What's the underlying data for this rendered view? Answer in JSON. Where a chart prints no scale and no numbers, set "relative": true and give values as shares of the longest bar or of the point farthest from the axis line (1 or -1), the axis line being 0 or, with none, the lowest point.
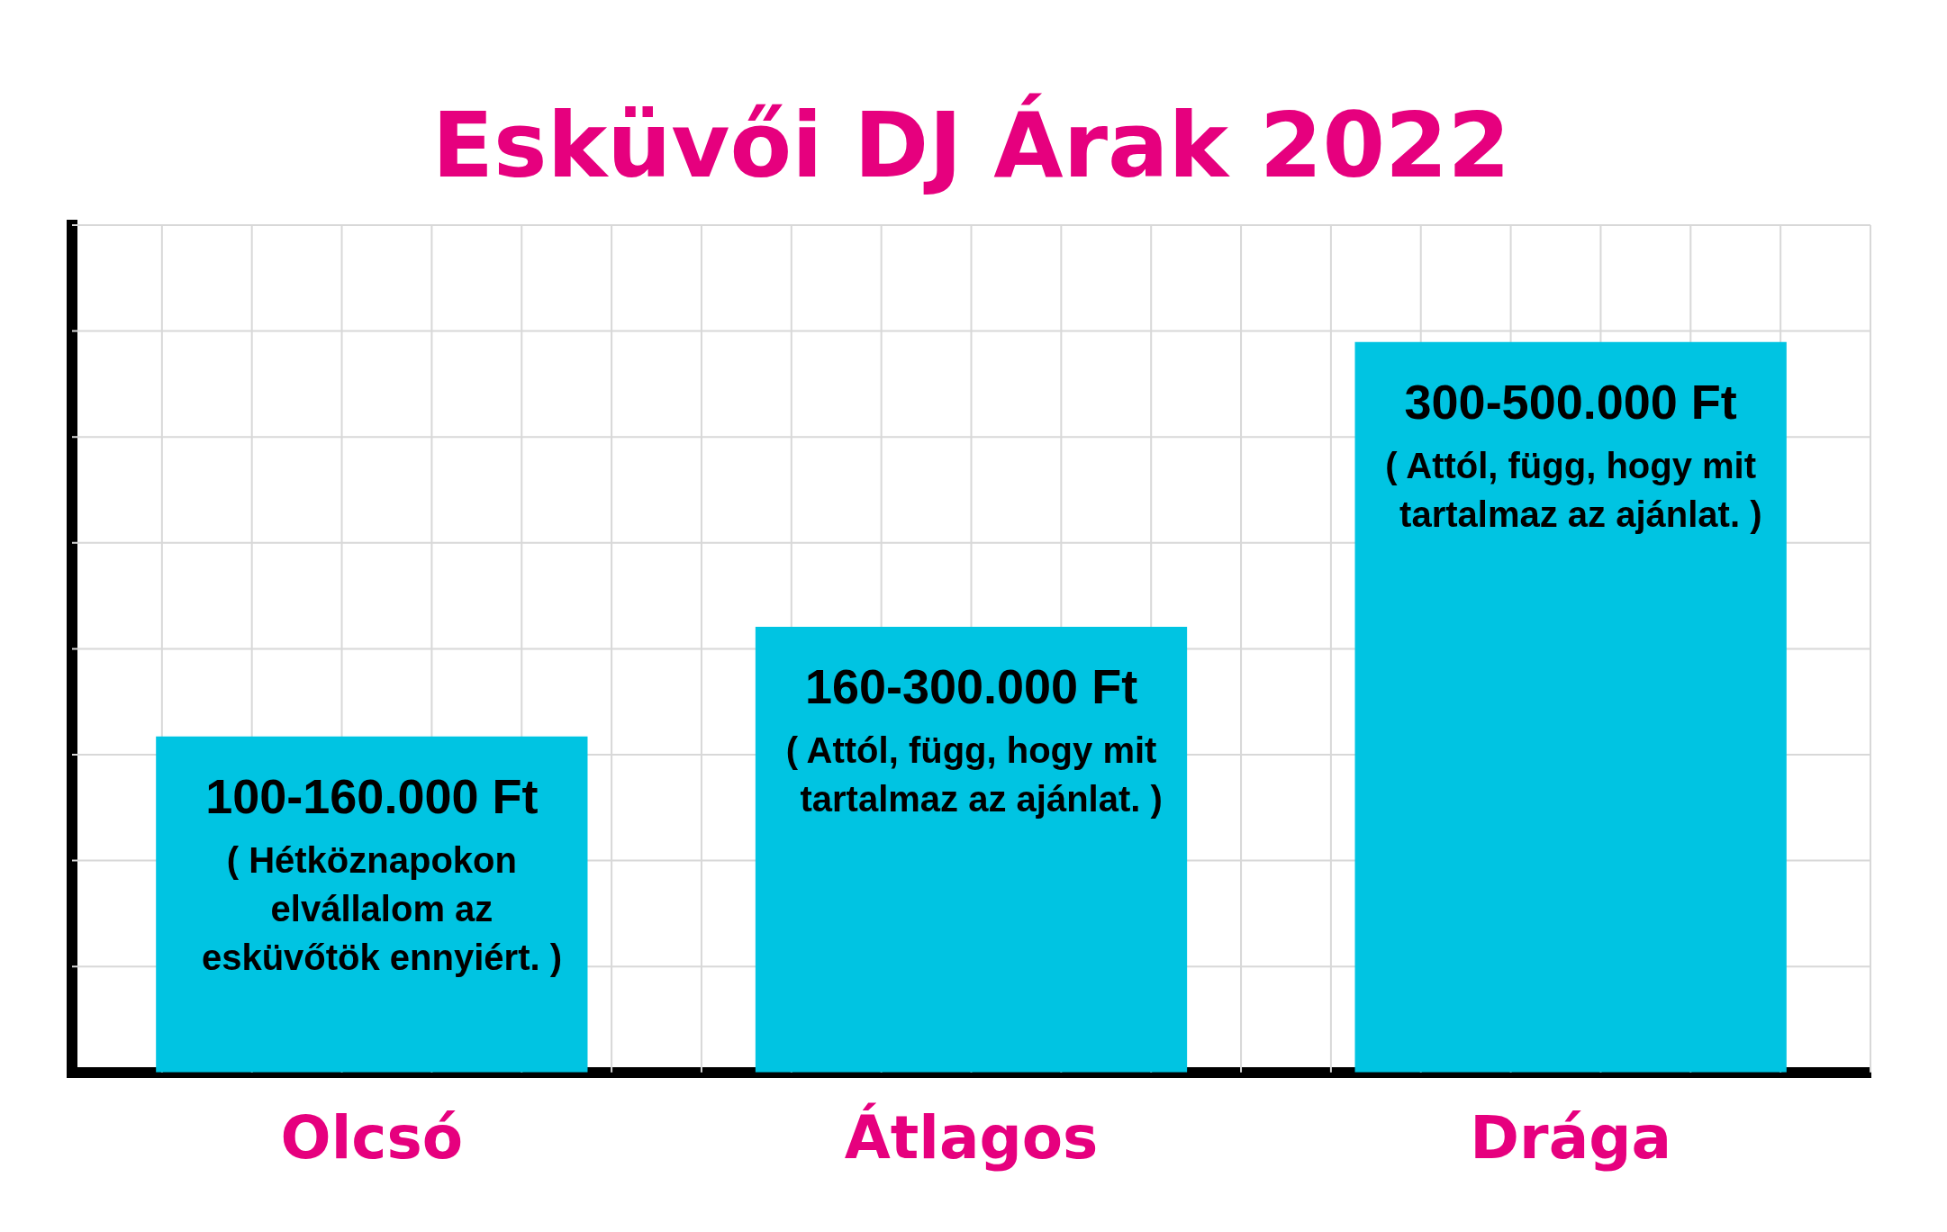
{
  "chart_data": {
    "type": "bar",
    "title": "Esküvői DJ Árak 2022",
    "relative": true,
    "categories": [
      "Olcsó",
      "Átlagos",
      "Drága"
    ],
    "values": [
      0.46,
      0.61,
      1
    ],
    "color": "#00c4e2",
    "grid": true,
    "tick_labels": "x",
    "annotations": [
      "100-160.000 Ft\n( Hétköznapokon\n  elvállalom az\n  esküvőtök ennyiért. )",
      "160-300.000 Ft\n( Attól, függ, hogy mit\n  tartalmaz az ajánlat. )",
      "300-500.000 Ft\n( Attól, függ, hogy mit\n  tartalmaz az ajánlat. )"
    ]
  }
}
